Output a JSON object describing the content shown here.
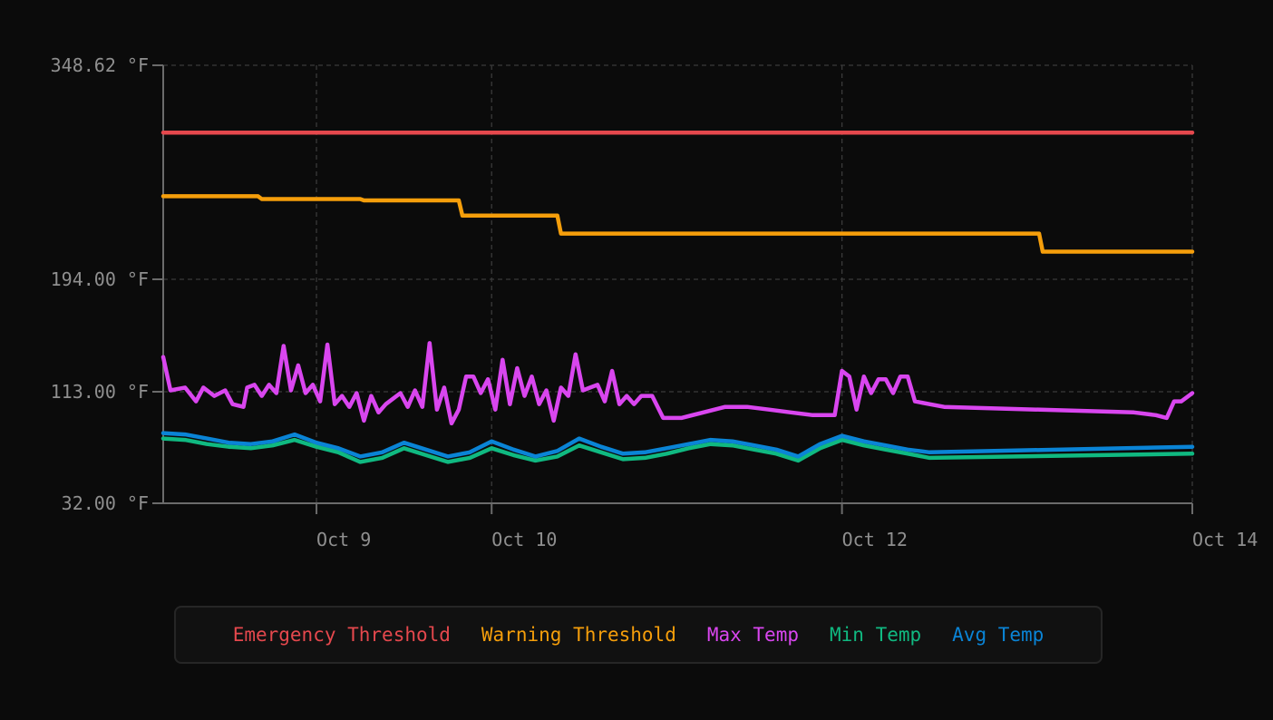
{
  "chart_data": {
    "type": "line",
    "ylim": [
      32.0,
      348.62
    ],
    "y_ticks": [
      {
        "value": 32.0,
        "label": "32.00 °F"
      },
      {
        "value": 113.0,
        "label": "113.00 °F"
      },
      {
        "value": 194.0,
        "label": "194.00 °F"
      },
      {
        "value": 348.62,
        "label": "348.62 °F"
      }
    ],
    "xlim": [
      "2024-10-08T03:00",
      "2024-10-14T00:00"
    ],
    "x_ticks": [
      {
        "value": "2024-10-09T00:00",
        "label": "Oct 9"
      },
      {
        "value": "2024-10-10T00:00",
        "label": "Oct 10"
      },
      {
        "value": "2024-10-12T00:00",
        "label": "Oct 12"
      },
      {
        "value": "2024-10-14T00:00",
        "label": "Oct 14"
      }
    ],
    "grid": true,
    "legend_position": "bottom",
    "series": [
      {
        "name": "Emergency Threshold",
        "color": "#e5484d",
        "points": [
          [
            "2024-10-08T03:00",
            300
          ],
          [
            "2024-10-14T00:00",
            300
          ]
        ]
      },
      {
        "name": "Warning Threshold",
        "color": "#f59e0b",
        "points": [
          [
            "2024-10-08T03:00",
            254
          ],
          [
            "2024-10-08T16:00",
            254
          ],
          [
            "2024-10-08T16:30",
            252
          ],
          [
            "2024-10-09T06:00",
            252
          ],
          [
            "2024-10-09T06:30",
            251
          ],
          [
            "2024-10-09T19:30",
            251
          ],
          [
            "2024-10-09T20:00",
            240
          ],
          [
            "2024-10-10T09:00",
            240
          ],
          [
            "2024-10-10T09:30",
            227
          ],
          [
            "2024-10-13T03:00",
            227
          ],
          [
            "2024-10-13T03:30",
            214
          ],
          [
            "2024-10-14T00:00",
            214
          ]
        ]
      },
      {
        "name": "Max Temp",
        "color": "#d946ef",
        "points": [
          [
            "2024-10-08T03:00",
            138
          ],
          [
            "2024-10-08T04:00",
            114
          ],
          [
            "2024-10-08T06:00",
            116
          ],
          [
            "2024-10-08T07:30",
            106
          ],
          [
            "2024-10-08T08:30",
            116
          ],
          [
            "2024-10-08T10:00",
            110
          ],
          [
            "2024-10-08T11:30",
            114
          ],
          [
            "2024-10-08T12:30",
            104
          ],
          [
            "2024-10-08T14:00",
            102
          ],
          [
            "2024-10-08T14:30",
            116
          ],
          [
            "2024-10-08T15:30",
            118
          ],
          [
            "2024-10-08T16:30",
            110
          ],
          [
            "2024-10-08T17:30",
            118
          ],
          [
            "2024-10-08T18:30",
            112
          ],
          [
            "2024-10-08T19:30",
            146
          ],
          [
            "2024-10-08T20:30",
            114
          ],
          [
            "2024-10-08T21:30",
            132
          ],
          [
            "2024-10-08T22:30",
            112
          ],
          [
            "2024-10-08T23:30",
            118
          ],
          [
            "2024-10-09T00:30",
            106
          ],
          [
            "2024-10-09T01:30",
            147
          ],
          [
            "2024-10-09T02:30",
            104
          ],
          [
            "2024-10-09T03:30",
            110
          ],
          [
            "2024-10-09T04:30",
            102
          ],
          [
            "2024-10-09T05:30",
            112
          ],
          [
            "2024-10-09T06:30",
            92
          ],
          [
            "2024-10-09T07:30",
            110
          ],
          [
            "2024-10-09T08:30",
            98
          ],
          [
            "2024-10-09T09:30",
            104
          ],
          [
            "2024-10-09T10:30",
            108
          ],
          [
            "2024-10-09T11:30",
            112
          ],
          [
            "2024-10-09T12:30",
            102
          ],
          [
            "2024-10-09T13:30",
            114
          ],
          [
            "2024-10-09T14:30",
            102
          ],
          [
            "2024-10-09T15:30",
            148
          ],
          [
            "2024-10-09T16:30",
            100
          ],
          [
            "2024-10-09T17:30",
            116
          ],
          [
            "2024-10-09T18:30",
            90
          ],
          [
            "2024-10-09T19:30",
            100
          ],
          [
            "2024-10-09T20:30",
            124
          ],
          [
            "2024-10-09T21:30",
            124
          ],
          [
            "2024-10-09T22:30",
            112
          ],
          [
            "2024-10-09T23:30",
            122
          ],
          [
            "2024-10-10T00:30",
            100
          ],
          [
            "2024-10-10T01:30",
            136
          ],
          [
            "2024-10-10T02:30",
            104
          ],
          [
            "2024-10-10T03:30",
            130
          ],
          [
            "2024-10-10T04:30",
            110
          ],
          [
            "2024-10-10T05:30",
            124
          ],
          [
            "2024-10-10T06:30",
            104
          ],
          [
            "2024-10-10T07:30",
            114
          ],
          [
            "2024-10-10T08:30",
            92
          ],
          [
            "2024-10-10T09:30",
            116
          ],
          [
            "2024-10-10T10:30",
            110
          ],
          [
            "2024-10-10T11:30",
            140
          ],
          [
            "2024-10-10T12:30",
            114
          ],
          [
            "2024-10-10T13:30",
            116
          ],
          [
            "2024-10-10T14:30",
            118
          ],
          [
            "2024-10-10T15:30",
            106
          ],
          [
            "2024-10-10T16:30",
            128
          ],
          [
            "2024-10-10T17:30",
            104
          ],
          [
            "2024-10-10T18:30",
            110
          ],
          [
            "2024-10-10T19:30",
            104
          ],
          [
            "2024-10-10T20:30",
            110
          ],
          [
            "2024-10-10T22:00",
            110
          ],
          [
            "2024-10-10T23:30",
            94
          ],
          [
            "2024-10-11T02:00",
            94
          ],
          [
            "2024-10-11T05:00",
            98
          ],
          [
            "2024-10-11T08:00",
            102
          ],
          [
            "2024-10-11T11:00",
            102
          ],
          [
            "2024-10-11T14:00",
            100
          ],
          [
            "2024-10-11T17:00",
            98
          ],
          [
            "2024-10-11T20:00",
            96
          ],
          [
            "2024-10-11T23:00",
            96
          ],
          [
            "2024-10-12T00:00",
            128
          ],
          [
            "2024-10-12T01:00",
            124
          ],
          [
            "2024-10-12T02:00",
            100
          ],
          [
            "2024-10-12T03:00",
            124
          ],
          [
            "2024-10-12T04:00",
            112
          ],
          [
            "2024-10-12T05:00",
            122
          ],
          [
            "2024-10-12T06:00",
            122
          ],
          [
            "2024-10-12T07:00",
            112
          ],
          [
            "2024-10-12T08:00",
            124
          ],
          [
            "2024-10-12T09:00",
            124
          ],
          [
            "2024-10-12T10:00",
            106
          ],
          [
            "2024-10-12T12:00",
            104
          ],
          [
            "2024-10-12T14:00",
            102
          ],
          [
            "2024-10-13T16:00",
            98
          ],
          [
            "2024-10-13T19:00",
            96
          ],
          [
            "2024-10-13T20:30",
            94
          ],
          [
            "2024-10-13T21:30",
            106
          ],
          [
            "2024-10-13T22:30",
            106
          ],
          [
            "2024-10-13T23:30",
            110
          ],
          [
            "2024-10-14T00:00",
            112
          ]
        ]
      },
      {
        "name": "Min Temp",
        "color": "#10b981",
        "points": [
          [
            "2024-10-08T03:00",
            79
          ],
          [
            "2024-10-08T06:00",
            78
          ],
          [
            "2024-10-08T09:00",
            75
          ],
          [
            "2024-10-08T12:00",
            73
          ],
          [
            "2024-10-08T15:00",
            72
          ],
          [
            "2024-10-08T18:00",
            74
          ],
          [
            "2024-10-08T21:00",
            78
          ],
          [
            "2024-10-09T00:00",
            73
          ],
          [
            "2024-10-09T03:00",
            69
          ],
          [
            "2024-10-09T06:00",
            62
          ],
          [
            "2024-10-09T09:00",
            65
          ],
          [
            "2024-10-09T12:00",
            72
          ],
          [
            "2024-10-09T15:00",
            67
          ],
          [
            "2024-10-09T18:00",
            62
          ],
          [
            "2024-10-09T21:00",
            65
          ],
          [
            "2024-10-10T00:00",
            72
          ],
          [
            "2024-10-10T03:00",
            67
          ],
          [
            "2024-10-10T06:00",
            63
          ],
          [
            "2024-10-10T09:00",
            66
          ],
          [
            "2024-10-10T12:00",
            74
          ],
          [
            "2024-10-10T15:00",
            69
          ],
          [
            "2024-10-10T18:00",
            64
          ],
          [
            "2024-10-10T21:00",
            65
          ],
          [
            "2024-10-11T00:00",
            68
          ],
          [
            "2024-10-11T03:00",
            72
          ],
          [
            "2024-10-11T06:00",
            75
          ],
          [
            "2024-10-11T09:00",
            74
          ],
          [
            "2024-10-11T12:00",
            71
          ],
          [
            "2024-10-11T15:00",
            68
          ],
          [
            "2024-10-11T18:00",
            63
          ],
          [
            "2024-10-11T21:00",
            72
          ],
          [
            "2024-10-12T00:00",
            78
          ],
          [
            "2024-10-12T03:00",
            74
          ],
          [
            "2024-10-12T06:00",
            71
          ],
          [
            "2024-10-12T09:00",
            68
          ],
          [
            "2024-10-12T12:00",
            65
          ],
          [
            "2024-10-14T00:00",
            68
          ]
        ]
      },
      {
        "name": "Avg Temp",
        "color": "#0a84d6",
        "points": [
          [
            "2024-10-08T03:00",
            83
          ],
          [
            "2024-10-08T06:00",
            82
          ],
          [
            "2024-10-08T09:00",
            79
          ],
          [
            "2024-10-08T12:00",
            76
          ],
          [
            "2024-10-08T15:00",
            75
          ],
          [
            "2024-10-08T18:00",
            77
          ],
          [
            "2024-10-08T21:00",
            82
          ],
          [
            "2024-10-09T00:00",
            76
          ],
          [
            "2024-10-09T03:00",
            72
          ],
          [
            "2024-10-09T06:00",
            66
          ],
          [
            "2024-10-09T09:00",
            69
          ],
          [
            "2024-10-09T12:00",
            76
          ],
          [
            "2024-10-09T15:00",
            71
          ],
          [
            "2024-10-09T18:00",
            66
          ],
          [
            "2024-10-09T21:00",
            69
          ],
          [
            "2024-10-10T00:00",
            77
          ],
          [
            "2024-10-10T03:00",
            71
          ],
          [
            "2024-10-10T06:00",
            66
          ],
          [
            "2024-10-10T09:00",
            70
          ],
          [
            "2024-10-10T12:00",
            79
          ],
          [
            "2024-10-10T15:00",
            73
          ],
          [
            "2024-10-10T18:00",
            68
          ],
          [
            "2024-10-10T21:00",
            69
          ],
          [
            "2024-10-11T00:00",
            72
          ],
          [
            "2024-10-11T03:00",
            75
          ],
          [
            "2024-10-11T06:00",
            78
          ],
          [
            "2024-10-11T09:00",
            77
          ],
          [
            "2024-10-11T12:00",
            74
          ],
          [
            "2024-10-11T15:00",
            71
          ],
          [
            "2024-10-11T18:00",
            66
          ],
          [
            "2024-10-11T21:00",
            75
          ],
          [
            "2024-10-12T00:00",
            81
          ],
          [
            "2024-10-12T03:00",
            77
          ],
          [
            "2024-10-12T06:00",
            74
          ],
          [
            "2024-10-12T09:00",
            71
          ],
          [
            "2024-10-12T12:00",
            69
          ],
          [
            "2024-10-14T00:00",
            73
          ]
        ]
      }
    ]
  }
}
